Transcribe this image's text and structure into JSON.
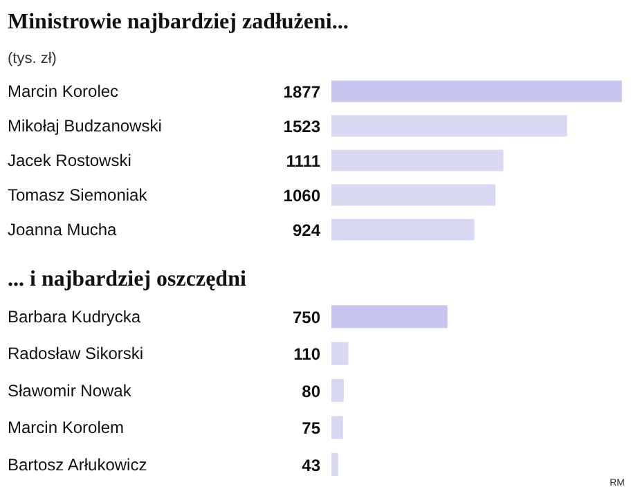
{
  "chart_data": [
    {
      "type": "bar",
      "orientation": "horizontal",
      "title": "Ministrowie najbardziej zadłużeni...",
      "subtitle": "(tys. zł)",
      "categories": [
        "Marcin Korolec",
        "Mikołaj Budzanowski",
        "Jacek Rostowski",
        "Tomasz Siemoniak",
        "Joanna Mucha"
      ],
      "values": [
        1877,
        1523,
        1111,
        1060,
        924
      ],
      "colors": [
        "#c8c6f0",
        "#d9d8f3",
        "#d9d8f3",
        "#d9d8f3",
        "#d9d8f3"
      ],
      "data_labels": true
    },
    {
      "type": "bar",
      "orientation": "horizontal",
      "title": "... i najbardziej oszczędni",
      "categories": [
        "Barbara Kudrycka",
        "Radosław Sikorski",
        "Sławomir Nowak",
        "Marcin Korolem",
        "Bartosz Arłukowicz"
      ],
      "values": [
        750,
        110,
        80,
        75,
        43
      ],
      "colors": [
        "#c8c6f0",
        "#d9d8f3",
        "#d9d8f3",
        "#d9d8f3",
        "#d9d8f3"
      ],
      "data_labels": true,
      "annotations": [
        "RM"
      ]
    }
  ]
}
